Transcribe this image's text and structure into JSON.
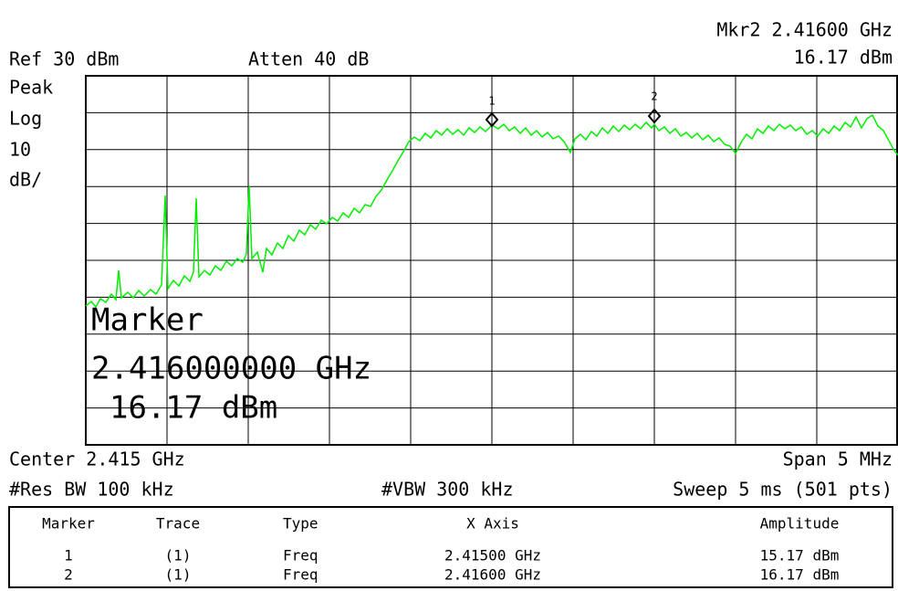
{
  "header": {
    "marker_readout": "Mkr2  2.41600 GHz",
    "marker_amplitude": "16.17 dBm",
    "reference": "Ref 30 dBm",
    "attenuation": "Atten 40 dB"
  },
  "scale_labels": [
    "Peak",
    "Log",
    "10",
    "dB/"
  ],
  "marker_flags": [
    "1",
    "2"
  ],
  "marker_box": {
    "title": "Marker",
    "frequency": "2.416000000 GHz",
    "amplitude": "16.17 dBm"
  },
  "footer": {
    "center": "Center 2.415 GHz",
    "span": "Span 5 MHz",
    "res_bw": "#Res BW 100 kHz",
    "vbw": "#VBW 300 kHz",
    "sweep": "Sweep 5 ms (501 pts)"
  },
  "table": {
    "headers": [
      "Marker",
      "Trace",
      "Type",
      "X Axis",
      "Amplitude"
    ],
    "rows": [
      [
        "1",
        "(1)",
        "Freq",
        "2.41500 GHz",
        "15.17 dBm"
      ],
      [
        "2",
        "(1)",
        "Freq",
        "2.41600 GHz",
        "16.17 dBm"
      ]
    ]
  }
}
